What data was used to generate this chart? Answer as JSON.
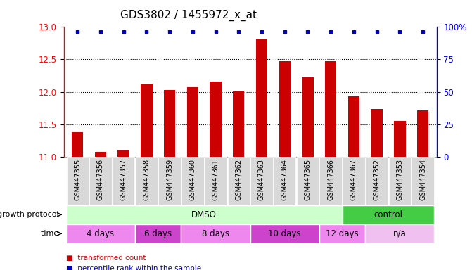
{
  "title": "GDS3802 / 1455972_x_at",
  "samples": [
    "GSM447355",
    "GSM447356",
    "GSM447357",
    "GSM447358",
    "GSM447359",
    "GSM447360",
    "GSM447361",
    "GSM447362",
    "GSM447363",
    "GSM447364",
    "GSM447365",
    "GSM447366",
    "GSM447367",
    "GSM447352",
    "GSM447353",
    "GSM447354"
  ],
  "bar_values": [
    11.38,
    11.07,
    11.09,
    12.13,
    12.03,
    12.07,
    12.16,
    12.02,
    12.81,
    12.47,
    12.22,
    12.47,
    11.93,
    11.73,
    11.55,
    11.71
  ],
  "percentile_values": [
    100,
    100,
    100,
    100,
    100,
    100,
    100,
    100,
    100,
    100,
    100,
    100,
    100,
    96,
    100,
    100
  ],
  "bar_color": "#cc0000",
  "percentile_color": "#0000cc",
  "ylim_left": [
    11.0,
    13.0
  ],
  "ylim_right": [
    0,
    100
  ],
  "yticks_left": [
    11.0,
    11.5,
    12.0,
    12.5,
    13.0
  ],
  "yticks_right": [
    0,
    25,
    50,
    75,
    100
  ],
  "grid_values": [
    11.5,
    12.0,
    12.5
  ],
  "protocol_groups": [
    {
      "label": "DMSO",
      "start": 0,
      "end": 12,
      "color": "#ccffcc"
    },
    {
      "label": "control",
      "start": 12,
      "end": 16,
      "color": "#44cc44"
    }
  ],
  "time_groups": [
    {
      "label": "4 days",
      "start": 0,
      "end": 3,
      "color": "#ee88ee"
    },
    {
      "label": "6 days",
      "start": 3,
      "end": 5,
      "color": "#cc44cc"
    },
    {
      "label": "8 days",
      "start": 5,
      "end": 8,
      "color": "#ee88ee"
    },
    {
      "label": "10 days",
      "start": 8,
      "end": 11,
      "color": "#cc44cc"
    },
    {
      "label": "12 days",
      "start": 11,
      "end": 13,
      "color": "#ee88ee"
    },
    {
      "label": "n/a",
      "start": 13,
      "end": 16,
      "color": "#f0c0f0"
    }
  ],
  "legend_items": [
    {
      "label": "transformed count",
      "color": "#cc0000"
    },
    {
      "label": "percentile rank within the sample",
      "color": "#0000cc"
    }
  ],
  "growth_protocol_label": "growth protocol",
  "time_label": "time",
  "xlabel_fontsize": 7,
  "title_fontsize": 11,
  "tick_label_bg": "#d8d8d8"
}
